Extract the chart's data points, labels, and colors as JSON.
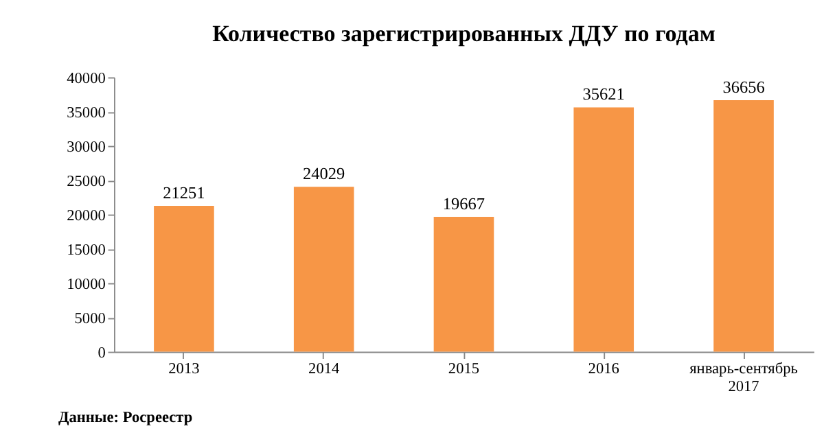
{
  "chart_data": {
    "type": "bar",
    "title": "Количество зарегистрированных ДДУ по годам",
    "categories": [
      "2013",
      "2014",
      "2015",
      "2016",
      "январь-сентябрь 2017"
    ],
    "values": [
      21251,
      24029,
      19667,
      35621,
      36656
    ],
    "color": "#f79646",
    "ylim": [
      0,
      40000
    ],
    "yticks": [
      0,
      5000,
      10000,
      15000,
      20000,
      25000,
      30000,
      35000,
      40000
    ],
    "grid": false,
    "data_labels": true,
    "annotations": [
      "Данные: Росреестр"
    ]
  }
}
